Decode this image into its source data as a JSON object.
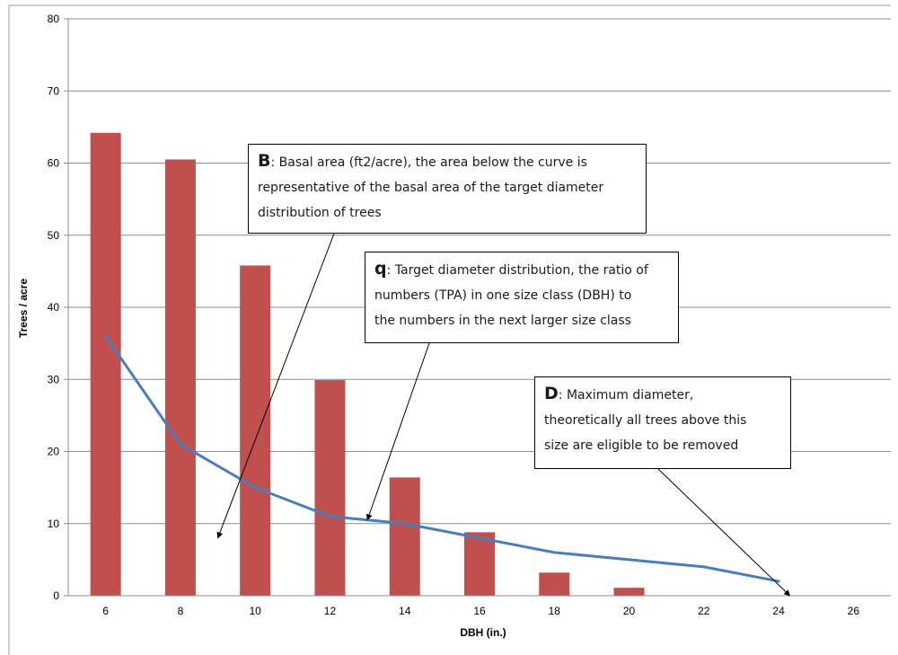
{
  "chart_data": {
    "type": "bar",
    "categories": [
      "6",
      "8",
      "10",
      "12",
      "14",
      "16",
      "18",
      "20",
      "22",
      "24",
      "26"
    ],
    "series": [
      {
        "type": "bar",
        "values": [
          64.2,
          60.5,
          45.8,
          29.9,
          16.4,
          8.8,
          3.2,
          1.1,
          0,
          0,
          0
        ],
        "color": "#c0504d"
      },
      {
        "type": "line",
        "values": [
          36,
          21,
          15,
          11,
          10,
          8,
          6,
          5,
          4,
          2,
          null
        ],
        "color": "#4a7ebb"
      }
    ],
    "xlabel": "DBH (in.)",
    "ylabel": "Trees / acre",
    "ylim": [
      0,
      80
    ],
    "yticks": [
      "0",
      "10",
      "20",
      "30",
      "40",
      "50",
      "60",
      "70",
      "80"
    ],
    "grid": true,
    "legend": "none",
    "annotations": [
      {
        "id": "B",
        "letter": "B",
        "lines": [
          ": Basal area (ft2/acre), the area below the curve is",
          "representative of the basal area of the target diameter",
          "distribution of trees"
        ],
        "arrow_to": {
          "x": 9,
          "y": 8
        }
      },
      {
        "id": "q",
        "letter": "q",
        "lines": [
          ": Target diameter distribution, the ratio of",
          "numbers (TPA) in one size class (DBH) to",
          "the numbers in the next larger size class"
        ],
        "arrow_to": {
          "x": 13,
          "y": 10.5
        }
      },
      {
        "id": "D",
        "letter": "D",
        "lines": [
          ": Maximum diameter,",
          "theoretically all trees above this",
          "size are eligible to be removed"
        ],
        "arrow_to": {
          "x": 24.3,
          "y": 0
        }
      }
    ]
  },
  "colors": {
    "bar": "#c0504d",
    "line": "#4a7ebb",
    "grid": "#8c8c8c",
    "axis": "#8c8c8c"
  }
}
